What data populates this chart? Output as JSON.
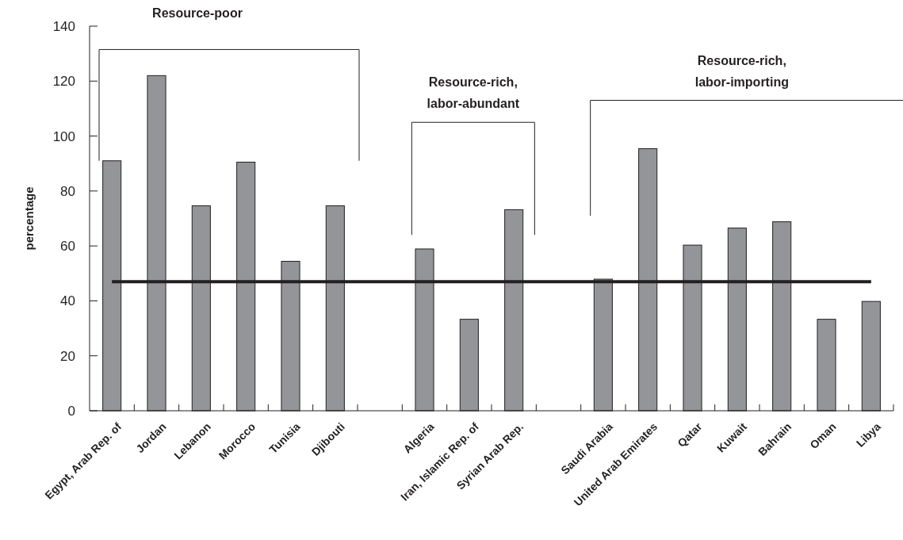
{
  "chart_data": {
    "type": "bar",
    "ylabel": "percentage",
    "categories": [
      "Egypt, Arab Rep. of",
      "Jordan",
      "Lebanon",
      "Morocco",
      "Tunisia",
      "Djibouti",
      null,
      "Algeria",
      "Iran, Islamic Rep. of",
      "Syrian Arab Rep.",
      null,
      "Saudi Arabia",
      "United Arab Emirates",
      "Qatar",
      "Kuwait",
      "Bahrain",
      "Oman",
      "Libya"
    ],
    "values": [
      91,
      122,
      74.6,
      90.5,
      54.4,
      74.6,
      null,
      58.9,
      33.3,
      73.2,
      null,
      47.9,
      95.4,
      60.3,
      66.5,
      68.8,
      33.3,
      39.8
    ],
    "color": "#939598",
    "ylim": [
      0,
      140
    ],
    "yticks": [
      0,
      20,
      40,
      60,
      80,
      100,
      120,
      140
    ],
    "ref_lines": [
      {
        "axis": "y",
        "value": 47,
        "color": "#231f20"
      }
    ],
    "annotations": [
      "Resource-poor",
      "Resource-rich,\nlabor-abundant",
      "Resource-rich,\nlabor-importing"
    ]
  }
}
